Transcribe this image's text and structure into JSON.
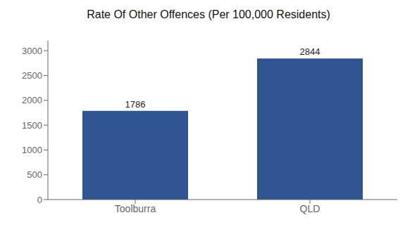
{
  "chart_data": {
    "type": "bar",
    "title": "Rate Of Other Offences (Per 100,000 Residents)",
    "categories": [
      "Toolburra",
      "QLD"
    ],
    "values": [
      1786,
      2844
    ],
    "color": "#2e5491",
    "ylim": [
      0,
      3200
    ],
    "yticks": [
      0,
      500,
      1000,
      1500,
      2000,
      2500,
      3000
    ],
    "grid": false,
    "data_labels": true
  }
}
